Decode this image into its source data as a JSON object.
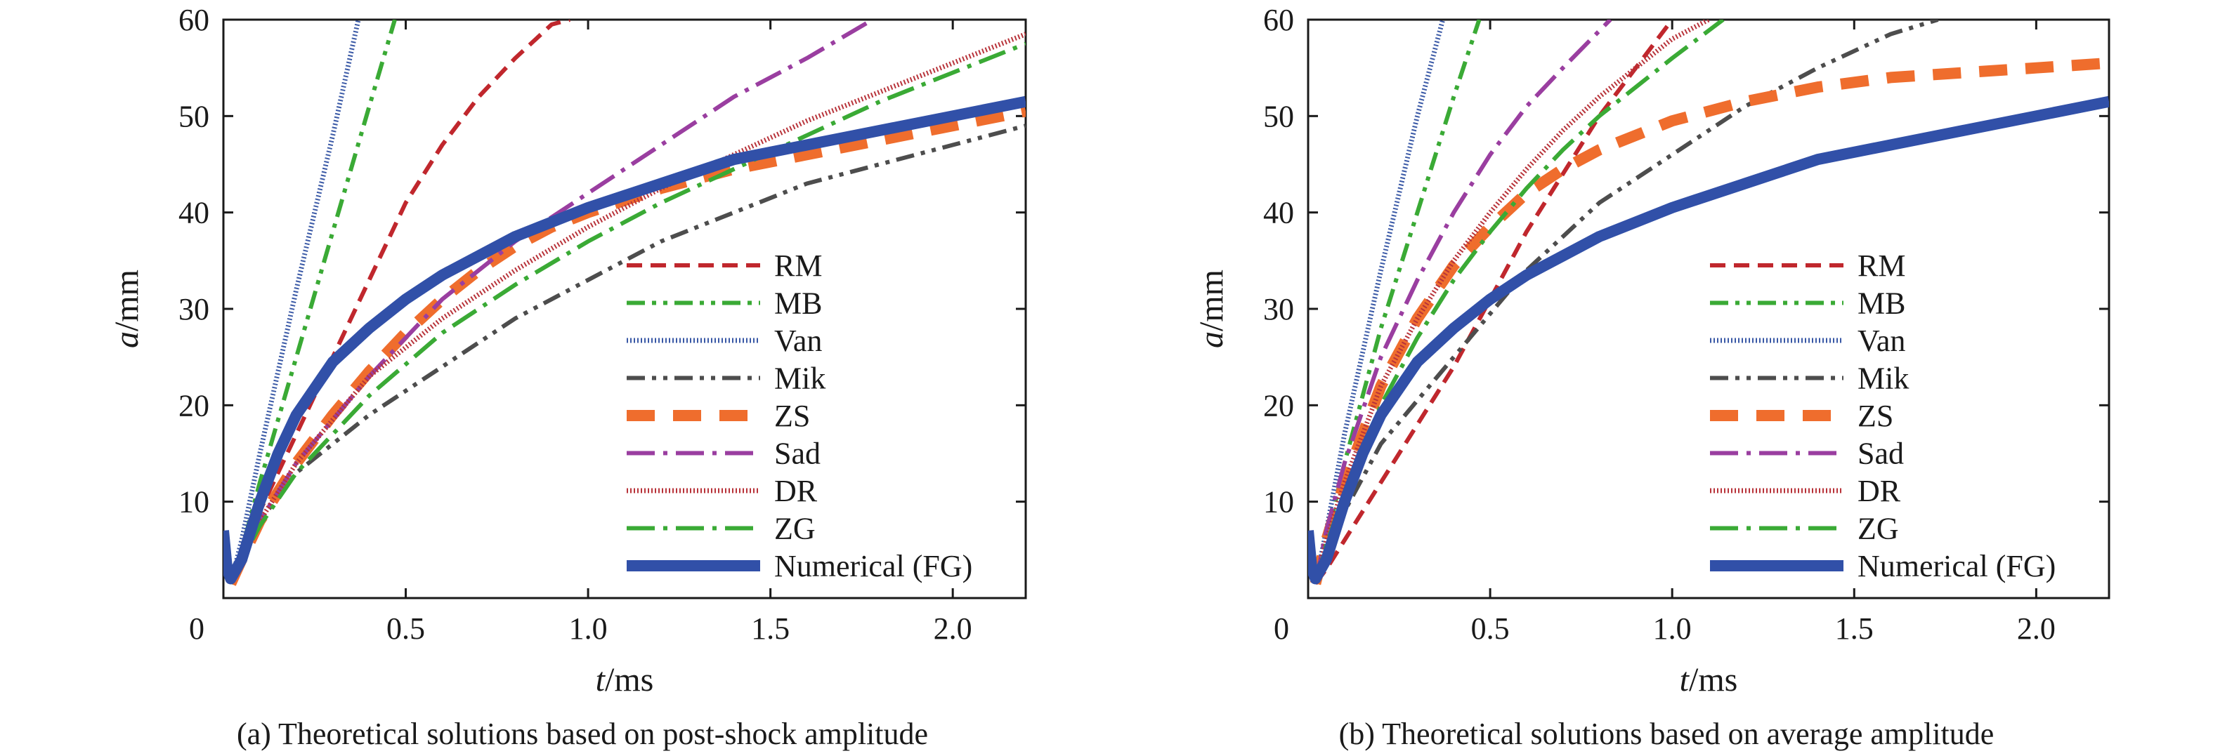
{
  "chart_data": [
    {
      "type": "line",
      "panel": "a",
      "caption": "(a) Theoretical solutions based on post-shock amplitude",
      "xlabel_var": "t",
      "xlabel_unit": "/ms",
      "ylabel_var": "a",
      "ylabel_unit": "/mm",
      "xlim": [
        0.0,
        2.2
      ],
      "ylim": [
        0,
        60
      ],
      "xticks": [
        0.5,
        1.0,
        1.5,
        2.0
      ],
      "xtick_labels": [
        "0.5",
        "1.0",
        "1.5",
        "2.0"
      ],
      "yticks": [
        10,
        20,
        30,
        40,
        50,
        60
      ],
      "ytick_labels": [
        "10",
        "20",
        "30",
        "40",
        "50",
        "60"
      ],
      "origin_label": "0",
      "grid": false,
      "legend_position": "lower-right",
      "series": [
        {
          "name": "RM",
          "color": "#c0272d",
          "style": "dash",
          "x": [
            0.02,
            0.05,
            0.1,
            0.2,
            0.3,
            0.4,
            0.5,
            0.6,
            0.7,
            0.8,
            0.9,
            0.95
          ],
          "y": [
            1.5,
            4,
            9,
            17,
            25,
            33,
            41,
            47,
            52,
            56,
            59.5,
            60
          ]
        },
        {
          "name": "MB",
          "color": "#3aaa35",
          "style": "dashdotdot",
          "x": [
            0.02,
            0.05,
            0.1,
            0.2,
            0.3,
            0.4,
            0.47
          ],
          "y": [
            1.5,
            5,
            12,
            25,
            38,
            51,
            60
          ]
        },
        {
          "name": "Van",
          "color": "#3a59a6",
          "style": "fine-hatch",
          "x": [
            0.02,
            0.05,
            0.1,
            0.2,
            0.3,
            0.37
          ],
          "y": [
            1.5,
            6,
            15,
            32,
            48,
            60
          ]
        },
        {
          "name": "Mik",
          "color": "#4d4d4d",
          "style": "dashdotdot",
          "x": [
            0.02,
            0.05,
            0.1,
            0.2,
            0.4,
            0.6,
            0.8,
            1.0,
            1.2,
            1.4,
            1.6,
            1.8,
            2.0,
            2.2
          ],
          "y": [
            1.5,
            4,
            8,
            13,
            19,
            24,
            29,
            33,
            37,
            40,
            43,
            45,
            47,
            49
          ]
        },
        {
          "name": "ZS",
          "color": "#ef6d2d",
          "style": "longdash-thick",
          "x": [
            0.02,
            0.05,
            0.1,
            0.2,
            0.3,
            0.4,
            0.5,
            0.6,
            0.7,
            0.8,
            0.9,
            1.0,
            1.2,
            1.4,
            1.6,
            1.8,
            2.0,
            2.2
          ],
          "y": [
            1.5,
            4,
            8,
            14,
            19,
            23.5,
            27.5,
            31,
            34,
            36.5,
            38.5,
            40,
            42.5,
            44.5,
            46,
            47.5,
            49,
            50.5
          ]
        },
        {
          "name": "Sad",
          "color": "#9a3ea0",
          "style": "dashdot",
          "x": [
            0.02,
            0.05,
            0.1,
            0.2,
            0.4,
            0.6,
            0.8,
            1.0,
            1.2,
            1.4,
            1.6,
            1.78
          ],
          "y": [
            1.5,
            4,
            8,
            14,
            23,
            31,
            37,
            42,
            47,
            52,
            56,
            60
          ]
        },
        {
          "name": "DR",
          "color": "#b8333a",
          "style": "fine-hatch",
          "x": [
            0.02,
            0.05,
            0.1,
            0.2,
            0.4,
            0.6,
            0.8,
            1.0,
            1.2,
            1.4,
            1.6,
            1.8,
            2.0,
            2.2
          ],
          "y": [
            1.5,
            4,
            8,
            14,
            23,
            29,
            34,
            38.5,
            42.5,
            46,
            49.5,
            52.5,
            55.5,
            58.5
          ]
        },
        {
          "name": "ZG",
          "color": "#3aaa35",
          "style": "dashdot",
          "x": [
            0.02,
            0.05,
            0.1,
            0.2,
            0.4,
            0.6,
            0.8,
            1.0,
            1.2,
            1.4,
            1.6,
            1.8,
            2.0,
            2.2
          ],
          "y": [
            1.5,
            4,
            7.5,
            13,
            21,
            27.5,
            32.5,
            37,
            41,
            44.5,
            48,
            51.5,
            54.5,
            57.5
          ]
        },
        {
          "name": "Numerical (FG)",
          "color": "#3150a8",
          "style": "solid-thick",
          "x": [
            0.0,
            0.01,
            0.02,
            0.05,
            0.1,
            0.15,
            0.2,
            0.3,
            0.4,
            0.5,
            0.6,
            0.7,
            0.8,
            0.9,
            1.0,
            1.2,
            1.4,
            1.6,
            1.8,
            2.0,
            2.2
          ],
          "y": [
            7,
            3,
            2,
            4,
            10,
            15,
            19,
            24.5,
            28,
            31,
            33.5,
            35.5,
            37.5,
            39,
            40.5,
            43,
            45.5,
            47,
            48.5,
            50,
            51.5
          ]
        }
      ]
    },
    {
      "type": "line",
      "panel": "b",
      "caption": "(b) Theoretical solutions based on average amplitude",
      "xlabel_var": "t",
      "xlabel_unit": "/ms",
      "ylabel_var": "a",
      "ylabel_unit": "/mm",
      "xlim": [
        0.0,
        2.2
      ],
      "ylim": [
        0,
        60
      ],
      "xticks": [
        0.5,
        1.0,
        1.5,
        2.0
      ],
      "xtick_labels": [
        "0.5",
        "1.0",
        "1.5",
        "2.0"
      ],
      "yticks": [
        10,
        20,
        30,
        40,
        50,
        60
      ],
      "ytick_labels": [
        "10",
        "20",
        "30",
        "40",
        "50",
        "60"
      ],
      "origin_label": "0",
      "grid": false,
      "legend_position": "lower-right",
      "series": [
        {
          "name": "RM",
          "color": "#c0272d",
          "style": "dash",
          "x": [
            0.02,
            0.05,
            0.1,
            0.2,
            0.3,
            0.4,
            0.5,
            0.6,
            0.7,
            0.8,
            0.9,
            1.0,
            0.95
          ],
          "y": [
            1.5,
            3,
            6,
            12,
            18,
            24,
            31,
            38,
            44,
            50,
            55,
            60,
            57.5
          ]
        },
        {
          "name": "MB",
          "color": "#3aaa35",
          "style": "dashdotdot",
          "x": [
            0.02,
            0.05,
            0.1,
            0.2,
            0.3,
            0.4,
            0.47
          ],
          "y": [
            1.5,
            6,
            14,
            28,
            40,
            52,
            60
          ]
        },
        {
          "name": "Van",
          "color": "#3a59a6",
          "style": "fine-hatch",
          "x": [
            0.02,
            0.05,
            0.1,
            0.2,
            0.3,
            0.37
          ],
          "y": [
            1.5,
            7,
            17,
            34,
            50,
            60
          ]
        },
        {
          "name": "Mik",
          "color": "#4d4d4d",
          "style": "dashdotdot",
          "x": [
            0.02,
            0.05,
            0.1,
            0.2,
            0.4,
            0.6,
            0.8,
            1.0,
            1.2,
            1.4,
            1.6,
            1.73
          ],
          "y": [
            1.5,
            5,
            9,
            16,
            25,
            34,
            41,
            46,
            51,
            55,
            58.5,
            60
          ]
        },
        {
          "name": "ZS",
          "color": "#ef6d2d",
          "style": "longdash-thick",
          "x": [
            0.02,
            0.05,
            0.1,
            0.2,
            0.3,
            0.4,
            0.5,
            0.6,
            0.7,
            0.8,
            0.9,
            1.0,
            1.2,
            1.4,
            1.6,
            1.8,
            2.0,
            2.2
          ],
          "y": [
            1.5,
            6,
            12,
            22,
            29,
            34.5,
            38.5,
            42,
            44.5,
            46.5,
            48,
            49.5,
            51.5,
            53,
            54,
            54.5,
            55,
            55.5
          ]
        },
        {
          "name": "Sad",
          "color": "#9a3ea0",
          "style": "dashdot",
          "x": [
            0.02,
            0.05,
            0.1,
            0.2,
            0.3,
            0.4,
            0.5,
            0.6,
            0.7,
            0.83
          ],
          "y": [
            1.5,
            7,
            14,
            25,
            33,
            40,
            46,
            51,
            55,
            60
          ]
        },
        {
          "name": "DR",
          "color": "#b8333a",
          "style": "fine-hatch",
          "x": [
            0.02,
            0.05,
            0.1,
            0.2,
            0.3,
            0.4,
            0.5,
            0.6,
            0.7,
            0.8,
            0.9,
            1.0,
            1.1
          ],
          "y": [
            1.5,
            6,
            12,
            22,
            29,
            35,
            40,
            44.5,
            48.5,
            52,
            55,
            58,
            60
          ]
        },
        {
          "name": "ZG",
          "color": "#3aaa35",
          "style": "dashdot",
          "x": [
            0.02,
            0.05,
            0.1,
            0.2,
            0.3,
            0.4,
            0.5,
            0.6,
            0.7,
            0.8,
            0.9,
            1.0,
            1.14
          ],
          "y": [
            1.5,
            5.5,
            11,
            20,
            27,
            33,
            38,
            42.5,
            46.5,
            50,
            53,
            56,
            60
          ]
        },
        {
          "name": "Numerical (FG)",
          "color": "#3150a8",
          "style": "solid-thick",
          "x": [
            0.0,
            0.01,
            0.02,
            0.05,
            0.1,
            0.15,
            0.2,
            0.3,
            0.4,
            0.5,
            0.6,
            0.7,
            0.8,
            0.9,
            1.0,
            1.2,
            1.4,
            1.6,
            1.8,
            2.0,
            2.2
          ],
          "y": [
            7,
            3,
            2,
            4,
            10,
            15,
            19,
            24.5,
            28,
            31,
            33.5,
            35.5,
            37.5,
            39,
            40.5,
            43,
            45.5,
            47,
            48.5,
            50,
            51.5
          ]
        }
      ]
    }
  ]
}
